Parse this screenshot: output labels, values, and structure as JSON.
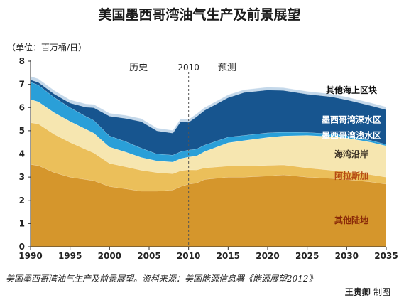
{
  "page": {
    "title": "美国墨西哥湾油气生产及前景展望",
    "unit": "（单位：百万桶/日）",
    "caption": "美国墨西哥湾油气生产及前景展望。资料来源：美国能源信息署《能源展望2012》",
    "credit_author": "王贵卿",
    "credit_suffix": "制图"
  },
  "chart_data": {
    "type": "area",
    "stacked": true,
    "title": "美国墨西哥湾油气生产及前景展望",
    "ylabel": "（单位：百万桶/日）",
    "xlabel": "",
    "xlim": [
      1990,
      2035
    ],
    "ylim": [
      0,
      8
    ],
    "x_ticks": [
      1990,
      1995,
      2000,
      2005,
      2010,
      2015,
      2020,
      2025,
      2030,
      2035
    ],
    "y_ticks": [
      0,
      1,
      2,
      3,
      4,
      5,
      6,
      7,
      8
    ],
    "grid": false,
    "annotations": {
      "history": "历史",
      "divider": "2010",
      "forecast": "预测",
      "divider_x": 2010
    },
    "x": [
      1990,
      1991,
      1993,
      1995,
      1997,
      1998,
      2000,
      2002,
      2004,
      2006,
      2008,
      2009,
      2010,
      2011,
      2012,
      2015,
      2017,
      2020,
      2022,
      2025,
      2028,
      2030,
      2033,
      2035
    ],
    "series": [
      {
        "name": "其他陆地",
        "color": "#d5962c",
        "values": [
          3.55,
          3.5,
          3.2,
          3.0,
          2.9,
          2.85,
          2.6,
          2.5,
          2.4,
          2.4,
          2.45,
          2.6,
          2.7,
          2.75,
          2.9,
          3.0,
          3.0,
          3.05,
          3.1,
          3.0,
          2.95,
          2.9,
          2.8,
          2.7
        ]
      },
      {
        "name": "阿拉斯加",
        "color": "#ebbf5a",
        "values": [
          1.8,
          1.8,
          1.65,
          1.5,
          1.3,
          1.2,
          1.0,
          0.95,
          0.9,
          0.8,
          0.7,
          0.68,
          0.62,
          0.56,
          0.5,
          0.48,
          0.48,
          0.46,
          0.43,
          0.4,
          0.35,
          0.34,
          0.31,
          0.3
        ]
      },
      {
        "name": "海湾沿岸",
        "color": "#f6e6b0",
        "values": [
          1.0,
          0.95,
          0.93,
          0.9,
          0.87,
          0.85,
          0.7,
          0.64,
          0.55,
          0.5,
          0.5,
          0.52,
          0.55,
          0.6,
          0.7,
          1.0,
          1.1,
          1.2,
          1.25,
          1.4,
          1.45,
          1.45,
          1.4,
          1.35
        ]
      },
      {
        "name": "墨西哥湾浅水区",
        "color": "#2a9fd8",
        "values": [
          0.75,
          0.72,
          0.66,
          0.6,
          0.55,
          0.55,
          0.48,
          0.45,
          0.4,
          0.3,
          0.3,
          0.3,
          0.3,
          0.3,
          0.28,
          0.25,
          0.22,
          0.2,
          0.16,
          0.13,
          0.12,
          0.1,
          0.08,
          0.06
        ]
      },
      {
        "name": "墨西哥湾深水区",
        "color": "#17558f",
        "values": [
          0.1,
          0.12,
          0.15,
          0.2,
          0.4,
          0.55,
          0.85,
          1.0,
          1.15,
          1.0,
          0.95,
          1.3,
          1.2,
          1.4,
          1.5,
          1.7,
          1.85,
          1.85,
          1.8,
          1.65,
          1.6,
          1.55,
          1.5,
          1.5
        ]
      },
      {
        "name": "其他海上区块",
        "color": "#c4d8ea",
        "values": [
          0.15,
          0.15,
          0.15,
          0.14,
          0.14,
          0.14,
          0.13,
          0.13,
          0.13,
          0.12,
          0.12,
          0.12,
          0.12,
          0.12,
          0.12,
          0.12,
          0.12,
          0.12,
          0.12,
          0.12,
          0.12,
          0.12,
          0.12,
          0.12
        ]
      }
    ],
    "labels": [
      {
        "series": "其他海上区块",
        "text": "其他海上区块",
        "color": "#111111"
      },
      {
        "series": "墨西哥湾深水区",
        "text": "墨西哥湾深水区",
        "color": "#ffffff"
      },
      {
        "series": "墨西哥湾浅水区",
        "text": "墨西哥湾浅水区",
        "color": "#ffffff"
      },
      {
        "series": "海湾沿岸",
        "text": "海湾沿岸",
        "color": "#3a3024"
      },
      {
        "series": "阿拉斯加",
        "text": "阿拉斯加",
        "color": "#b54a12"
      },
      {
        "series": "其他陆地",
        "text": "其他陆地",
        "color": "#8a2a08"
      }
    ]
  }
}
